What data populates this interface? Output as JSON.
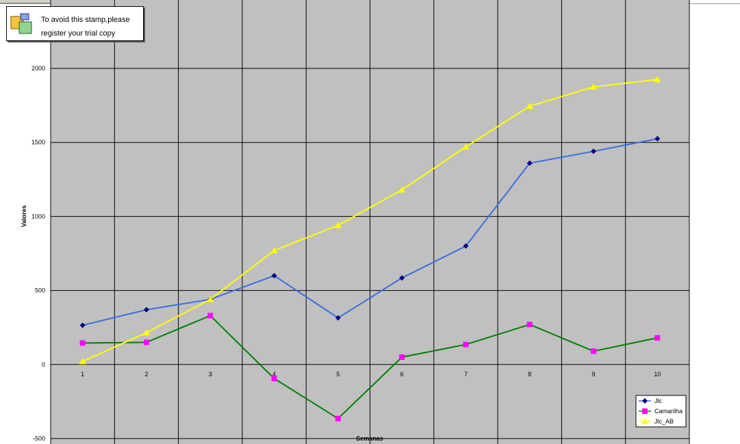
{
  "stamp": {
    "line1": "To avoid this stamp,please",
    "line2": "register your trial copy"
  },
  "colors": {
    "plot_background": "#c0c0c0",
    "grid": "#000000",
    "Jlc": "#3a6de0",
    "Jlc_marker": "#000080",
    "Camarilha": "#008000",
    "Camarilha_marker": "#ff00ff",
    "Jlc_AB": "#ffff00",
    "Jlc_AB_marker": "#ffff00"
  },
  "chart_data": {
    "type": "line",
    "title": "",
    "xlabel": "Semanas",
    "ylabel": "Valores",
    "categories": [
      "1",
      "2",
      "3",
      "4",
      "5",
      "6",
      "7",
      "8",
      "9",
      "10"
    ],
    "ylim": [
      -500,
      2000
    ],
    "yticks": [
      "2000",
      "1500",
      "1000",
      "500",
      "0",
      "-500"
    ],
    "grid": true,
    "legend_position": "bottom-right",
    "series": [
      {
        "name": "Jlc",
        "marker": "diamond",
        "values": [
          265,
          370,
          440,
          600,
          315,
          585,
          800,
          1360,
          1440,
          1525
        ]
      },
      {
        "name": "Camarilha",
        "marker": "square",
        "values": [
          145,
          150,
          330,
          -95,
          -365,
          50,
          135,
          270,
          90,
          180
        ]
      },
      {
        "name": "Jlc_AB",
        "marker": "triangle",
        "values": [
          20,
          215,
          440,
          770,
          940,
          1180,
          1470,
          1745,
          1875,
          1925
        ]
      }
    ]
  }
}
